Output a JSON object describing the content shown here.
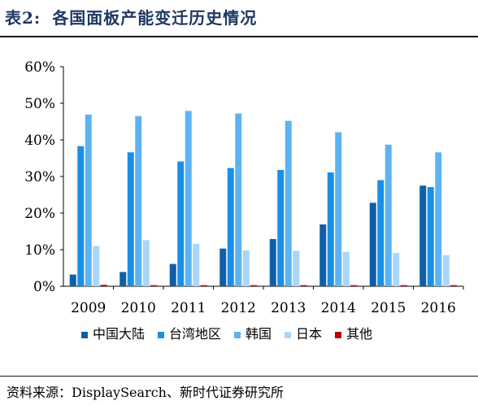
{
  "header": {
    "table_label": "表2:",
    "title": "各国面板产能变迁历史情况"
  },
  "source": "资料来源：DisplaySearch、新时代证券研究所",
  "colors": {
    "title": "#1f3864",
    "series": [
      "#0e5fa8",
      "#1a8fe6",
      "#5db3f2",
      "#a9d6f9",
      "#c00000"
    ]
  },
  "chart_data": {
    "type": "bar",
    "title": "",
    "xlabel": "",
    "ylabel": "",
    "ylim": [
      0,
      60
    ],
    "yticks": [
      "0%",
      "10%",
      "20%",
      "30%",
      "40%",
      "50%",
      "60%"
    ],
    "grid": false,
    "legend_position": "bottom",
    "categories": [
      "2009",
      "2010",
      "2011",
      "2012",
      "2013",
      "2014",
      "2015",
      "2016"
    ],
    "series": [
      {
        "name": "中国大陆",
        "values": [
          3.2,
          3.9,
          6.1,
          10.3,
          12.9,
          16.9,
          22.8,
          27.5
        ]
      },
      {
        "name": "台湾地区",
        "values": [
          38.3,
          36.6,
          34.1,
          32.3,
          31.8,
          31.1,
          29.0,
          27.1
        ]
      },
      {
        "name": "韩国",
        "values": [
          46.9,
          46.5,
          47.9,
          47.2,
          45.2,
          42.1,
          38.7,
          36.6
        ]
      },
      {
        "name": "日本",
        "values": [
          11.0,
          12.6,
          11.6,
          9.8,
          9.7,
          9.4,
          9.1,
          8.5
        ]
      },
      {
        "name": "其他",
        "values": [
          0.4,
          0.3,
          0.3,
          0.3,
          0.3,
          0.3,
          0.3,
          0.3
        ]
      }
    ]
  }
}
